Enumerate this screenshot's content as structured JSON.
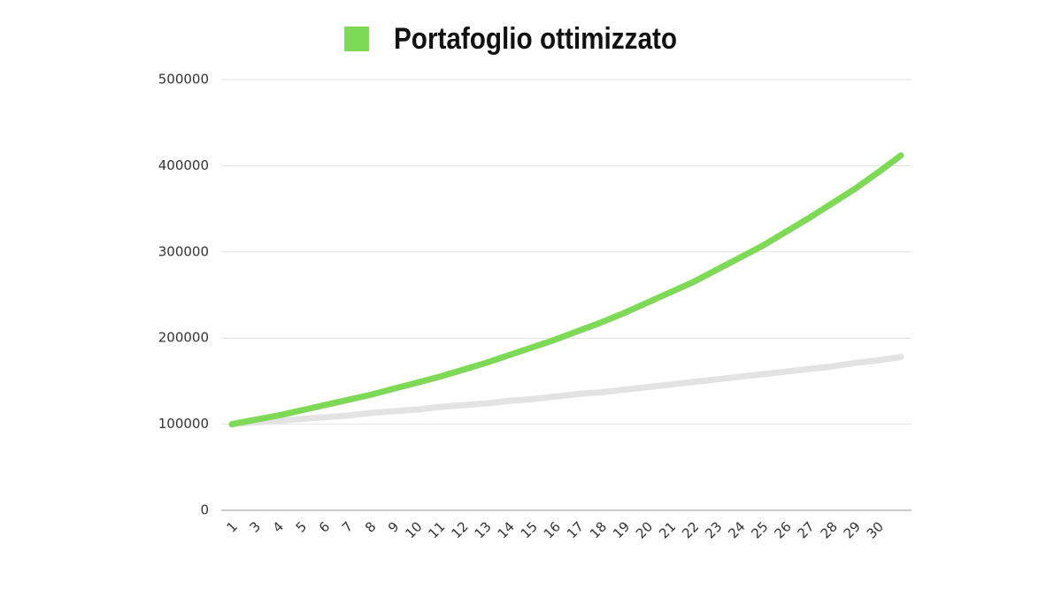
{
  "chart_data": {
    "type": "line",
    "categories": [
      "1",
      "3",
      "4",
      "5",
      "6",
      "7",
      "8",
      "9",
      "10",
      "11",
      "12",
      "13",
      "14",
      "15",
      "16",
      "17",
      "18",
      "19",
      "20",
      "21",
      "22",
      "23",
      "24",
      "25",
      "26",
      "27",
      "28",
      "29",
      "30",
      null
    ],
    "series": [
      {
        "name": "Portafoglio ottimizzato",
        "color": "#7ed957",
        "values": [
          100000,
          105000,
          110000,
          116000,
          122000,
          128000,
          134000,
          141000,
          148000,
          155000,
          163000,
          171000,
          180000,
          189000,
          198000,
          208000,
          218000,
          229000,
          241000,
          253000,
          265000,
          279000,
          293000,
          307000,
          323000,
          339000,
          356000,
          373000,
          392000,
          412000
        ]
      },
      {
        "color": "#e3e3e3",
        "values": [
          100000,
          102000,
          104000,
          106000,
          108000,
          110000,
          113000,
          115000,
          117000,
          120000,
          122000,
          124000,
          127000,
          129000,
          132000,
          135000,
          137000,
          140000,
          143000,
          146000,
          149000,
          152000,
          155000,
          158000,
          161000,
          164000,
          167000,
          171000,
          174000,
          178000
        ]
      }
    ],
    "ylim": [
      0,
      500000
    ],
    "yticks": [
      0,
      100000,
      200000,
      300000,
      400000,
      500000
    ],
    "grid": true
  }
}
